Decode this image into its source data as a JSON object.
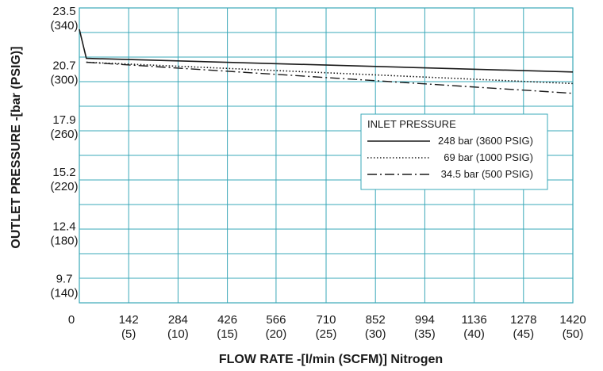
{
  "chart_data": {
    "type": "line",
    "title": "",
    "xlabel": "FLOW RATE -[l/min (SCFM)] Nitrogen",
    "ylabel": "OUTLET PRESSURE -[bar (PSIG)]",
    "xlim": [
      0,
      1420
    ],
    "ylim": [
      9.7,
      23.5
    ],
    "grid": true,
    "legend_position": "center-right",
    "legend_title": "INLET PRESSURE",
    "x_ticks": [
      {
        "value": 0,
        "label": "0",
        "sublabel": ""
      },
      {
        "value": 142,
        "label": "142",
        "sublabel": "(5)"
      },
      {
        "value": 284,
        "label": "284",
        "sublabel": "(10)"
      },
      {
        "value": 426,
        "label": "426",
        "sublabel": "(15)"
      },
      {
        "value": 566,
        "label": "566",
        "sublabel": "(20)"
      },
      {
        "value": 710,
        "label": "710",
        "sublabel": "(25)"
      },
      {
        "value": 852,
        "label": "852",
        "sublabel": "(30)"
      },
      {
        "value": 994,
        "label": "994",
        "sublabel": "(35)"
      },
      {
        "value": 1136,
        "label": "1136",
        "sublabel": "(40)"
      },
      {
        "value": 1278,
        "label": "1278",
        "sublabel": "(45)"
      },
      {
        "value": 1420,
        "label": "1420",
        "sublabel": "(50)"
      }
    ],
    "y_ticks": [
      {
        "value": 23.5,
        "label": "23.5",
        "sublabel": "(340)"
      },
      {
        "value": 20.7,
        "label": "20.7",
        "sublabel": "(300)"
      },
      {
        "value": 17.9,
        "label": "17.9",
        "sublabel": "(260)"
      },
      {
        "value": 15.2,
        "label": "15.2",
        "sublabel": "(220)"
      },
      {
        "value": 12.4,
        "label": "12.4",
        "sublabel": "(180)"
      },
      {
        "value": 9.7,
        "label": "9.7",
        "sublabel": "(140)"
      }
    ],
    "series": [
      {
        "name": "248 bar (3600 PSIG)",
        "style": "solid",
        "x": [
          0,
          20,
          1420
        ],
        "y": [
          22.4,
          20.9,
          20.2
        ]
      },
      {
        "name": "69 bar (1000 PSIG)",
        "style": "dotted",
        "x": [
          20,
          1420
        ],
        "y": [
          20.7,
          19.6
        ]
      },
      {
        "name": "34.5 bar (500 PSIG)",
        "style": "dashdot",
        "x": [
          20,
          1420
        ],
        "y": [
          20.7,
          19.1
        ]
      }
    ],
    "colors": {
      "grid": "#3aa8b8",
      "line": "#1a1a1a"
    }
  }
}
